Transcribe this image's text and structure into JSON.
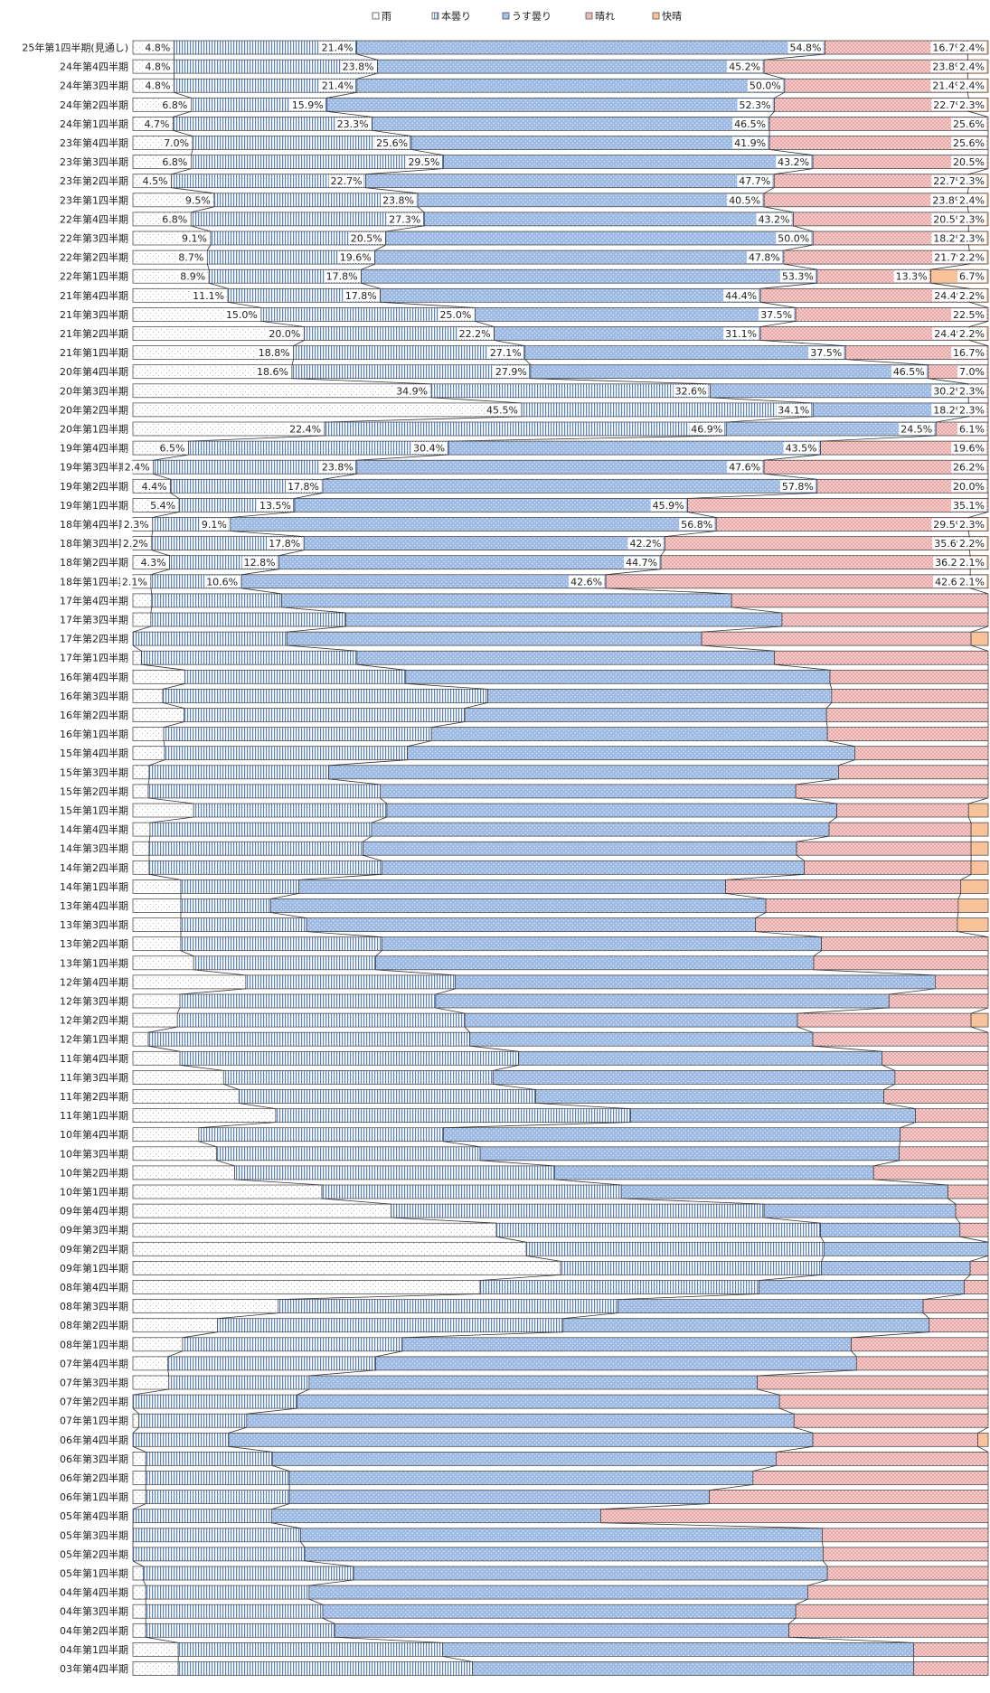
{
  "chart_data": {
    "type": "bar",
    "stacked": "percent",
    "orientation": "horizontal",
    "legend_position": "top",
    "series": [
      {
        "name": "雨",
        "color": "#ffffff"
      },
      {
        "name": "本曇り",
        "color": "#dfe8f4"
      },
      {
        "name": "うす曇り",
        "color": "#9fbbe3"
      },
      {
        "name": "晴れ",
        "color": "#f1c7c7"
      },
      {
        "name": "快晴",
        "color": "#f8c39b"
      }
    ],
    "categories": [
      "25年第1四半期(見通し)",
      "24年第4四半期",
      "24年第3四半期",
      "24年第2四半期",
      "24年第1四半期",
      "23年第4四半期",
      "23年第3四半期",
      "23年第2四半期",
      "23年第1四半期",
      "22年第4四半期",
      "22年第3四半期",
      "22年第2四半期",
      "22年第1四半期",
      "21年第4四半期",
      "21年第3四半期",
      "21年第2四半期",
      "21年第1四半期",
      "20年第4四半期",
      "20年第3四半期",
      "20年第2四半期",
      "20年第1四半期",
      "19年第4四半期",
      "19年第3四半期",
      "19年第2四半期",
      "19年第1四半期",
      "18年第4四半期",
      "18年第3四半期",
      "18年第2四半期",
      "18年第1四半期",
      "17年第4四半期",
      "17年第3四半期",
      "17年第2四半期",
      "17年第1四半期",
      "16年第4四半期",
      "16年第3四半期",
      "16年第2四半期",
      "16年第1四半期",
      "15年第4四半期",
      "15年第3四半期",
      "15年第2四半期",
      "15年第1四半期",
      "14年第4四半期",
      "14年第3四半期",
      "14年第2四半期",
      "14年第1四半期",
      "13年第4四半期",
      "13年第3四半期",
      "13年第2四半期",
      "13年第1四半期",
      "12年第4四半期",
      "12年第3四半期",
      "12年第2四半期",
      "12年第1四半期",
      "11年第4四半期",
      "11年第3四半期",
      "11年第2四半期",
      "11年第1四半期",
      "10年第4四半期",
      "10年第3四半期",
      "10年第2四半期",
      "10年第1四半期",
      "09年第4四半期",
      "09年第3四半期",
      "09年第2四半期",
      "09年第1四半期",
      "08年第4四半期",
      "08年第3四半期",
      "08年第2四半期",
      "08年第1四半期",
      "07年第4四半期",
      "07年第3四半期",
      "07年第2四半期",
      "07年第1四半期",
      "06年第4四半期",
      "06年第3四半期",
      "06年第2四半期",
      "06年第1四半期",
      "05年第4四半期",
      "05年第3四半期",
      "05年第2四半期",
      "05年第1四半期",
      "04年第4四半期",
      "04年第3四半期",
      "04年第2四半期",
      "04年第1四半期",
      "03年第4四半期"
    ],
    "values": [
      [
        4.8,
        21.4,
        54.8,
        16.7,
        2.4
      ],
      [
        4.8,
        23.8,
        45.2,
        23.8,
        2.4
      ],
      [
        4.8,
        21.4,
        50.0,
        21.4,
        2.4
      ],
      [
        6.8,
        15.9,
        52.3,
        22.7,
        2.3
      ],
      [
        4.7,
        23.3,
        46.5,
        25.6,
        0
      ],
      [
        7.0,
        25.6,
        41.9,
        25.6,
        0
      ],
      [
        6.8,
        29.5,
        43.2,
        20.5,
        0
      ],
      [
        4.5,
        22.7,
        47.7,
        22.7,
        2.3
      ],
      [
        9.5,
        23.8,
        40.5,
        23.8,
        2.4
      ],
      [
        6.8,
        27.3,
        43.2,
        20.5,
        2.3
      ],
      [
        9.1,
        20.5,
        50.0,
        18.2,
        2.3
      ],
      [
        8.7,
        19.6,
        47.8,
        21.7,
        2.2
      ],
      [
        8.9,
        17.8,
        53.3,
        13.3,
        6.7
      ],
      [
        11.1,
        17.8,
        44.4,
        24.4,
        2.2
      ],
      [
        15.0,
        25.0,
        37.5,
        22.5,
        0
      ],
      [
        20.0,
        22.2,
        31.1,
        24.4,
        2.2
      ],
      [
        18.8,
        27.1,
        37.5,
        16.7,
        0
      ],
      [
        18.6,
        27.9,
        46.5,
        7.0,
        0
      ],
      [
        34.9,
        32.6,
        30.2,
        2.3,
        0
      ],
      [
        45.5,
        34.1,
        18.2,
        2.3,
        0
      ],
      [
        22.4,
        46.9,
        24.5,
        6.1,
        0
      ],
      [
        6.5,
        30.4,
        43.5,
        19.6,
        0
      ],
      [
        2.4,
        23.8,
        47.6,
        26.2,
        0
      ],
      [
        4.4,
        17.8,
        57.8,
        20.0,
        0
      ],
      [
        5.4,
        13.5,
        45.9,
        35.1,
        0
      ],
      [
        2.3,
        9.1,
        56.8,
        29.5,
        2.3
      ],
      [
        2.2,
        17.8,
        42.2,
        35.6,
        2.2
      ],
      [
        4.3,
        12.8,
        44.7,
        36.2,
        2.1
      ],
      [
        2.1,
        10.6,
        42.6,
        42.6,
        2.1
      ],
      [
        2.2,
        15.2,
        52.6,
        30.0,
        0
      ],
      [
        2.1,
        22.8,
        51.0,
        24.1,
        0
      ],
      [
        0,
        18.0,
        48.5,
        31.5,
        2.0
      ],
      [
        1.0,
        25.2,
        48.8,
        25.0,
        0
      ],
      [
        6.1,
        25.8,
        49.6,
        18.5,
        0
      ],
      [
        3.5,
        38.0,
        40.2,
        18.3,
        0
      ],
      [
        6.0,
        32.8,
        42.3,
        18.9,
        0
      ],
      [
        3.6,
        31.3,
        46.3,
        18.8,
        0
      ],
      [
        3.7,
        28.4,
        52.3,
        15.6,
        0
      ],
      [
        1.9,
        21.0,
        59.6,
        17.5,
        0
      ],
      [
        1.8,
        27.1,
        48.6,
        22.5,
        0
      ],
      [
        7.1,
        22.6,
        52.6,
        15.4,
        2.3
      ],
      [
        2.0,
        25.9,
        53.5,
        16.6,
        2.0
      ],
      [
        1.9,
        25.0,
        50.7,
        20.4,
        2.0
      ],
      [
        1.9,
        27.2,
        49.4,
        19.5,
        2.0
      ],
      [
        5.6,
        13.8,
        49.9,
        27.5,
        3.2
      ],
      [
        5.6,
        10.5,
        57.9,
        22.5,
        3.5
      ],
      [
        5.6,
        14.7,
        52.5,
        23.6,
        3.6
      ],
      [
        5.6,
        23.5,
        51.4,
        19.5,
        0
      ],
      [
        7.1,
        21.3,
        51.2,
        20.4,
        0
      ],
      [
        13.2,
        24.5,
        56.1,
        6.2,
        0
      ],
      [
        5.5,
        29.9,
        53.0,
        11.6,
        0
      ],
      [
        5.2,
        33.6,
        38.9,
        20.3,
        2.0
      ],
      [
        1.8,
        37.6,
        40.1,
        20.5,
        0
      ],
      [
        5.5,
        39.6,
        42.5,
        12.4,
        0
      ],
      [
        10.6,
        31.5,
        47.0,
        10.9,
        0
      ],
      [
        12.4,
        34.7,
        40.7,
        12.2,
        0
      ],
      [
        16.7,
        41.5,
        33.3,
        8.5,
        0
      ],
      [
        7.7,
        28.6,
        53.4,
        10.3,
        0
      ],
      [
        9.8,
        30.8,
        49.0,
        10.4,
        0
      ],
      [
        11.9,
        37.4,
        37.3,
        13.4,
        0
      ],
      [
        22.1,
        35.0,
        38.2,
        4.7,
        0
      ],
      [
        30.2,
        43.6,
        22.4,
        3.8,
        0
      ],
      [
        42.5,
        37.9,
        16.3,
        3.3,
        0
      ],
      [
        46.0,
        34.8,
        19.2,
        0,
        0
      ],
      [
        50.0,
        30.5,
        17.4,
        2.1,
        0
      ],
      [
        40.6,
        32.6,
        24.0,
        2.8,
        0
      ],
      [
        17.0,
        39.7,
        35.7,
        7.6,
        0
      ],
      [
        9.9,
        40.4,
        42.8,
        6.9,
        0
      ],
      [
        5.8,
        25.7,
        52.5,
        16.0,
        0
      ],
      [
        4.1,
        24.3,
        56.2,
        15.4,
        0
      ],
      [
        4.2,
        16.4,
        52.4,
        27.0,
        0
      ],
      [
        0,
        19.2,
        56.4,
        24.4,
        0
      ],
      [
        0.7,
        12.6,
        64.0,
        22.7,
        0
      ],
      [
        0,
        11.2,
        68.3,
        19.3,
        1.2
      ],
      [
        1.5,
        14.8,
        58.9,
        24.8,
        0
      ],
      [
        1.5,
        16.8,
        54.2,
        27.5,
        0
      ],
      [
        1.5,
        16.8,
        49.1,
        32.6,
        0
      ],
      [
        0,
        16.2,
        38.5,
        45.3,
        0
      ],
      [
        0,
        19.6,
        61.0,
        19.4,
        0
      ],
      [
        0,
        20.1,
        60.6,
        19.3,
        0
      ],
      [
        1.2,
        24.6,
        55.4,
        18.8,
        0
      ],
      [
        1.5,
        19.1,
        58.3,
        21.1,
        0
      ],
      [
        1.5,
        20.7,
        55.3,
        22.5,
        0
      ],
      [
        1.5,
        22.1,
        53.1,
        23.3,
        0
      ],
      [
        5.3,
        30.9,
        55.1,
        8.7,
        0
      ],
      [
        5.3,
        34.4,
        51.6,
        8.7,
        0
      ]
    ]
  }
}
